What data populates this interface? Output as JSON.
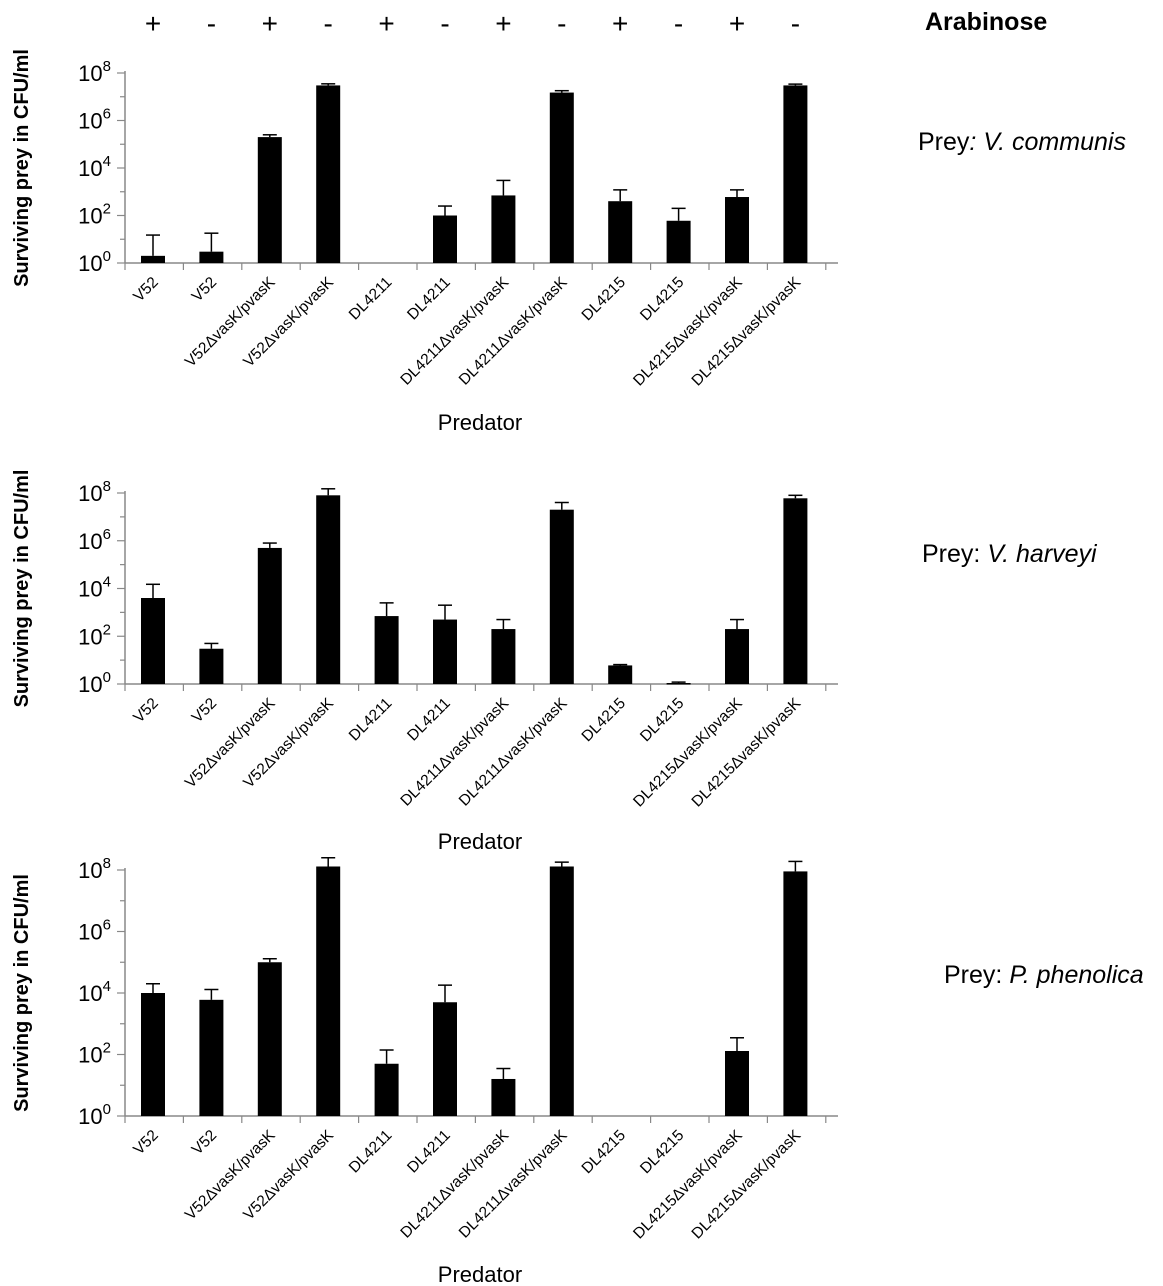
{
  "arabinose": {
    "label": "Arabinose",
    "signs": [
      "+",
      "-",
      "+",
      "-",
      "+",
      "-",
      "+",
      "-",
      "+",
      "-",
      "+",
      "-"
    ]
  },
  "chart_data": [
    {
      "type": "bar",
      "prey_prefix": "Prey",
      "prey_sep": ": ",
      "prey_species": "V. communis",
      "ylabel": "Surviving prey in CFU/ml",
      "xlabel": "Predator",
      "yscale": "log",
      "ylim": [
        1,
        100000000
      ],
      "ytick_exponents": [
        0,
        2,
        4,
        6,
        8
      ],
      "ytick_base": "10",
      "categories": [
        "V52",
        "V52",
        "V52ΔvasK/pvasK",
        "V52ΔvasK/pvasK",
        "DL4211",
        "DL4211",
        "DL4211ΔvasK/pvasK",
        "DL4211ΔvasK/pvasK",
        "DL4215",
        "DL4215",
        "DL4215ΔvasK/pvasK",
        "DL4215ΔvasK/pvasK"
      ],
      "values": [
        2,
        3,
        200000,
        30000000,
        null,
        100,
        700,
        15000000,
        400,
        60,
        600,
        30000000
      ],
      "error_upper": [
        15,
        18,
        250000,
        35000000,
        null,
        250,
        3000,
        18000000,
        1200,
        200,
        1200,
        34000000
      ]
    },
    {
      "type": "bar",
      "prey_prefix": "Prey",
      "prey_sep": ": ",
      "prey_species": "V. harveyi",
      "ylabel": "Surviving prey in CFU/ml",
      "xlabel": "Predator",
      "yscale": "log",
      "ylim": [
        1,
        100000000
      ],
      "ytick_exponents": [
        0,
        2,
        4,
        6,
        8
      ],
      "ytick_base": "10",
      "categories": [
        "V52",
        "V52",
        "V52ΔvasK/pvasK",
        "V52ΔvasK/pvasK",
        "DL4211",
        "DL4211",
        "DL4211ΔvasK/pvasK",
        "DL4211ΔvasK/pvasK",
        "DL4215",
        "DL4215",
        "DL4215ΔvasK/pvasK",
        "DL4215ΔvasK/pvasK"
      ],
      "values": [
        4000,
        30,
        500000,
        80000000,
        700,
        500,
        200,
        20000000,
        6,
        1.1,
        200,
        60000000
      ],
      "error_upper": [
        15000,
        50,
        800000,
        150000000,
        2500,
        2000,
        500,
        40000000,
        6.5,
        1.2,
        500,
        80000000
      ]
    },
    {
      "type": "bar",
      "prey_prefix": "Prey",
      "prey_sep": ": ",
      "prey_species": "P. phenolica",
      "ylabel": "Surviving prey in CFU/ml",
      "xlabel": "Predator",
      "yscale": "log",
      "ylim": [
        1,
        100000000
      ],
      "ytick_exponents": [
        0,
        2,
        4,
        6,
        8
      ],
      "ytick_base": "10",
      "categories": [
        "V52",
        "V52",
        "V52ΔvasK/pvasK",
        "V52ΔvasK/pvasK",
        "DL4211",
        "DL4211",
        "DL4211ΔvasK/pvasK",
        "DL4211ΔvasK/pvasK",
        "DL4215",
        "DL4215",
        "DL4215ΔvasK/pvasK",
        "DL4215ΔvasK/pvasK"
      ],
      "values": [
        10000,
        6000,
        100000,
        130000000,
        50,
        5000,
        16,
        130000000,
        null,
        null,
        130,
        90000000
      ],
      "error_upper": [
        20000,
        13000,
        130000,
        250000000,
        140,
        18000,
        35,
        180000000,
        null,
        null,
        350,
        190000000
      ]
    }
  ]
}
